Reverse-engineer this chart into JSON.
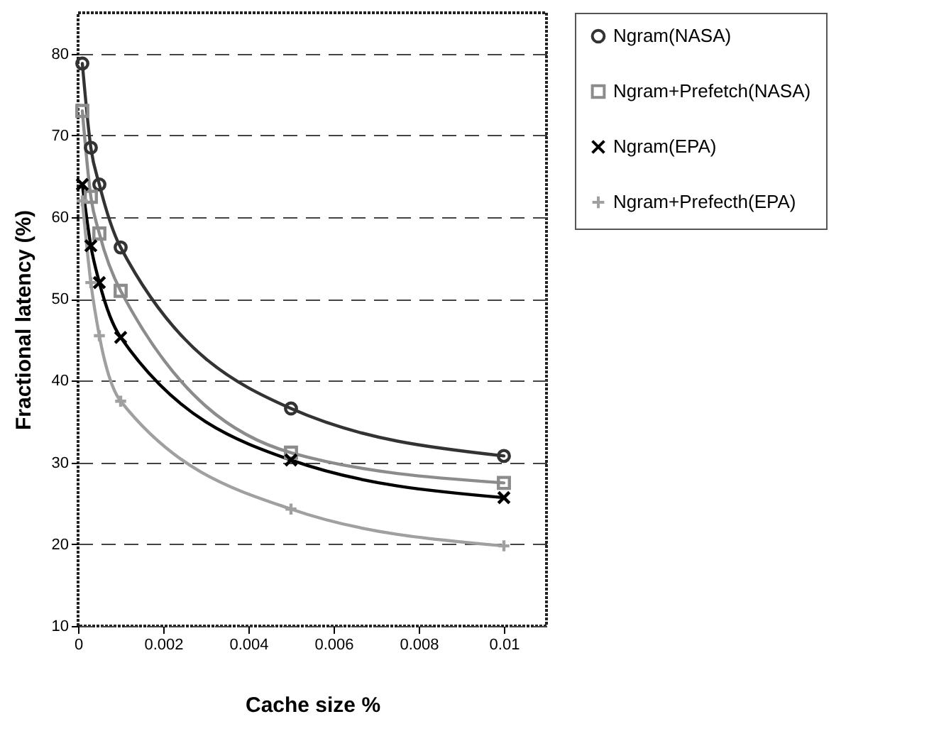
{
  "chart_data": {
    "type": "line",
    "xlabel": "Cache size %",
    "ylabel": "Fractional latency (%)",
    "x": [
      0.0001,
      0.0003,
      0.0005,
      0.001,
      0.005,
      0.01
    ],
    "series": [
      {
        "name": "Ngram(NASA)",
        "color": "#333333",
        "marker": "circle",
        "values": [
          78.8,
          68.5,
          64,
          56.3,
          36.6,
          30.8
        ]
      },
      {
        "name": "Ngram+Prefetch(NASA)",
        "color": "#8c8c8c",
        "marker": "square",
        "values": [
          73,
          62.5,
          58,
          51,
          31.2,
          27.5
        ]
      },
      {
        "name": "Ngram(EPA)",
        "color": "#000000",
        "marker": "cross",
        "values": [
          64,
          56.5,
          52,
          45.3,
          30.3,
          25.7
        ]
      },
      {
        "name": "Ngram+Prefecth(EPA)",
        "color": "#a0a0a0",
        "marker": "plus",
        "values": [
          62,
          52,
          45.5,
          37.5,
          24.3,
          19.8
        ]
      }
    ],
    "xlim": [
      0,
      0.011
    ],
    "xticks": [
      0,
      0.002,
      0.004,
      0.006,
      0.008,
      0.01
    ],
    "ylim": [
      10,
      85
    ],
    "yticks": [
      10,
      20,
      30,
      40,
      50,
      60,
      70,
      80
    ],
    "grid": "y",
    "legend": "right",
    "line_style": "solid"
  }
}
